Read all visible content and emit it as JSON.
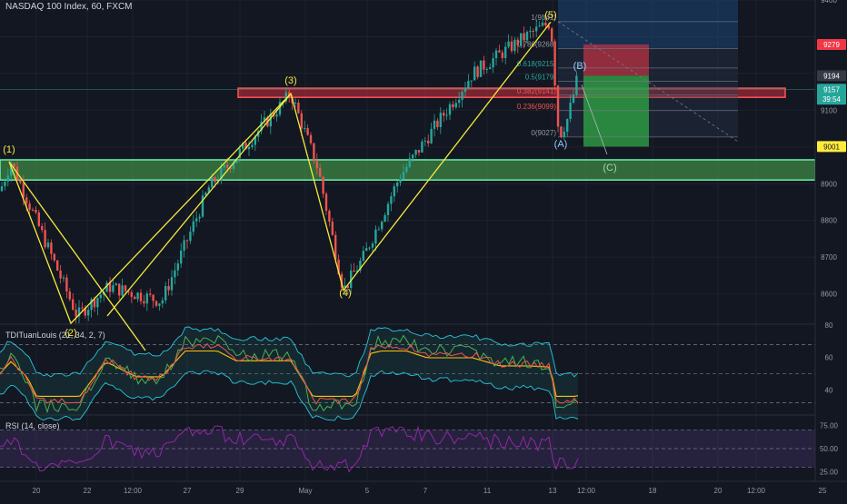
{
  "header": {
    "symbol_title": "NASDAQ 100 Index, 60, FXCM"
  },
  "colors": {
    "background": "#131722",
    "grid": "#1e222d",
    "up_candle": "#26a69a",
    "down_candle": "#ef5350",
    "wave_line": "#f5eb3b",
    "green_zone": "#4caf50",
    "red_zone": "#f23645",
    "rsi_line": "#9c27b0",
    "tdi_green": "#4caf50",
    "tdi_red": "#ef5350",
    "tdi_yellow": "#ffc107",
    "tdi_band": "#26c6da"
  },
  "chart_data": [
    {
      "type": "candlestick",
      "title": "NASDAQ 100 Index, 60, FXCM",
      "y_axis_ticks": [
        9400,
        9300,
        9200,
        9100,
        9000,
        8900,
        8800,
        8700,
        8600
      ],
      "y_axis_labels": [
        "9400",
        "9200",
        "9100",
        "8900",
        "8800",
        "8700",
        "8600"
      ],
      "x_axis_labels": [
        "20",
        "22",
        "12:00",
        "27",
        "29",
        "May",
        "5",
        "7",
        "11",
        "13",
        "12:00",
        "18",
        "20",
        "12:00",
        "25"
      ],
      "ylim": [
        8520,
        9400
      ],
      "price_labels": [
        {
          "text": "9279",
          "value": 9279,
          "color": "#f23645"
        },
        {
          "text": "9194",
          "value": 9194,
          "color": "#363a45"
        },
        {
          "text": "9157",
          "value": 9157,
          "color": "#26a69a"
        },
        {
          "text": "39:54",
          "value": 9130,
          "color": "#26a69a"
        },
        {
          "text": "9001",
          "value": 9001,
          "color": "#ffeb3b"
        }
      ],
      "waves": {
        "points": [
          {
            "label": "(1)",
            "value": 8960
          },
          {
            "label": "(2)",
            "value": 8520
          },
          {
            "label": "(3)",
            "value": 9145
          },
          {
            "label": "(4)",
            "value": 8610
          },
          {
            "label": "(5)",
            "value": 9340
          }
        ],
        "corrective": [
          {
            "label": "(A)",
            "value": 9027
          },
          {
            "label": "(B)",
            "value": 9194
          },
          {
            "label": "(C)",
            "value": 8960
          }
        ]
      },
      "fibonacci": [
        {
          "label": "1(9341)",
          "value": 9341
        },
        {
          "label": "0.786(9268)",
          "value": 9268
        },
        {
          "label": "0.618(9215)",
          "value": 9215
        },
        {
          "label": "0.5(9179)",
          "value": 9179
        },
        {
          "label": "0.382(9141)",
          "value": 9141
        },
        {
          "label": "0.236(9099)",
          "value": 9099
        },
        {
          "label": "0(9027)",
          "value": 9027
        }
      ],
      "zones": [
        {
          "name": "resistance",
          "from": 9135,
          "to": 9160
        },
        {
          "name": "support",
          "from": 8910,
          "to": 8965
        }
      ]
    },
    {
      "type": "line",
      "title": "TDITuanLouis (21, 34, 2, 7)",
      "y_axis_labels": [
        "80",
        "60",
        "40"
      ],
      "ylim": [
        25,
        80
      ],
      "levels": [
        68,
        50,
        32
      ]
    },
    {
      "type": "line",
      "title": "RSI (14, close)",
      "y_axis_labels": [
        "75.00",
        "50.00",
        "25.00"
      ],
      "ylim": [
        15,
        85
      ],
      "levels": [
        70,
        50,
        30
      ]
    }
  ]
}
